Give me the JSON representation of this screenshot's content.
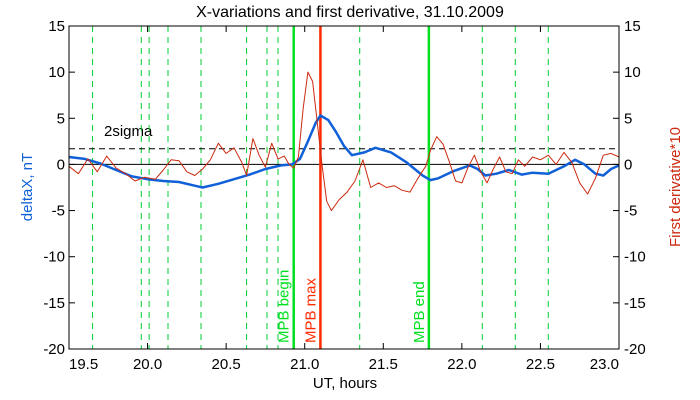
{
  "chart_data": {
    "type": "line",
    "title": "X-variations and first derivative, 31.10.2009",
    "xlabel": "UT, hours",
    "ylabel_left": "deltaX, nT",
    "ylabel_right": "First derivative*10",
    "xlim": [
      19.5,
      23.0
    ],
    "ylim_left": [
      -20,
      15
    ],
    "ylim_right": [
      -20,
      15
    ],
    "x_ticks": [
      "19.5",
      "20.0",
      "20.5",
      "21.0",
      "21.5",
      "22.0",
      "22.5",
      "23.0"
    ],
    "y_ticks": [
      "15",
      "10",
      "5",
      "0",
      "-5",
      "-10",
      "-15",
      "-20"
    ],
    "colors": {
      "deltaX": "#1060d8",
      "derivative": "#cc2a10",
      "mpb": "#00e020",
      "mpb_max": "#ff2a00",
      "guides": "#00cc33",
      "axis": "#000000"
    },
    "sigma_label": "2sigma",
    "sigma_level": 1.7,
    "zero_level": 0,
    "guide_lines_x": [
      19.65,
      19.96,
      20.01,
      20.13,
      20.34,
      20.63,
      20.76,
      20.83,
      21.35,
      22.13,
      22.34,
      22.55
    ],
    "events": [
      {
        "label": "MPB begin",
        "x": 20.93,
        "color": "#00e020"
      },
      {
        "label": "MPB max",
        "x": 21.1,
        "color": "#ff2a00"
      },
      {
        "label": "MPB end",
        "x": 21.79,
        "color": "#00e020"
      }
    ],
    "series": [
      {
        "name": "deltaX, nT",
        "color": "#1060d8",
        "points": [
          [
            19.5,
            0.8
          ],
          [
            19.6,
            0.6
          ],
          [
            19.7,
            0.1
          ],
          [
            19.8,
            -0.6
          ],
          [
            19.9,
            -1.3
          ],
          [
            20.0,
            -1.6
          ],
          [
            20.1,
            -1.8
          ],
          [
            20.2,
            -1.9
          ],
          [
            20.3,
            -2.3
          ],
          [
            20.35,
            -2.5
          ],
          [
            20.45,
            -2.1
          ],
          [
            20.55,
            -1.6
          ],
          [
            20.65,
            -1.1
          ],
          [
            20.75,
            -0.5
          ],
          [
            20.85,
            -0.1
          ],
          [
            20.92,
            0.0
          ],
          [
            20.97,
            0.6
          ],
          [
            21.02,
            2.5
          ],
          [
            21.07,
            4.5
          ],
          [
            21.1,
            5.3
          ],
          [
            21.15,
            4.8
          ],
          [
            21.2,
            3.5
          ],
          [
            21.25,
            2.0
          ],
          [
            21.3,
            1.0
          ],
          [
            21.38,
            1.3
          ],
          [
            21.45,
            1.8
          ],
          [
            21.55,
            1.3
          ],
          [
            21.65,
            0.2
          ],
          [
            21.75,
            -1.2
          ],
          [
            21.8,
            -1.7
          ],
          [
            21.85,
            -1.5
          ],
          [
            21.95,
            -0.7
          ],
          [
            22.05,
            -0.1
          ],
          [
            22.1,
            -0.5
          ],
          [
            22.15,
            -1.2
          ],
          [
            22.22,
            -1.0
          ],
          [
            22.3,
            -0.6
          ],
          [
            22.38,
            -1.1
          ],
          [
            22.45,
            -0.9
          ],
          [
            22.55,
            -1.0
          ],
          [
            22.65,
            -0.2
          ],
          [
            22.72,
            0.5
          ],
          [
            22.78,
            0.0
          ],
          [
            22.85,
            -1.0
          ],
          [
            22.9,
            -1.2
          ],
          [
            22.95,
            -0.5
          ],
          [
            23.0,
            -0.1
          ]
        ]
      },
      {
        "name": "First derivative*10",
        "color": "#cc2a10",
        "points": [
          [
            19.5,
            -0.2
          ],
          [
            19.56,
            -1.0
          ],
          [
            19.62,
            0.6
          ],
          [
            19.68,
            -0.8
          ],
          [
            19.74,
            0.9
          ],
          [
            19.8,
            -0.4
          ],
          [
            19.86,
            -1.0
          ],
          [
            19.92,
            -1.8
          ],
          [
            19.98,
            -1.4
          ],
          [
            20.05,
            -1.6
          ],
          [
            20.1,
            -0.6
          ],
          [
            20.15,
            0.5
          ],
          [
            20.2,
            0.4
          ],
          [
            20.25,
            -0.8
          ],
          [
            20.3,
            -1.2
          ],
          [
            20.35,
            -0.5
          ],
          [
            20.4,
            0.5
          ],
          [
            20.45,
            2.3
          ],
          [
            20.5,
            1.2
          ],
          [
            20.55,
            1.8
          ],
          [
            20.6,
            0.2
          ],
          [
            20.63,
            -1.2
          ],
          [
            20.67,
            2.8
          ],
          [
            20.71,
            1.0
          ],
          [
            20.75,
            -0.3
          ],
          [
            20.79,
            2.3
          ],
          [
            20.83,
            0.6
          ],
          [
            20.87,
            0.9
          ],
          [
            20.9,
            0.0
          ],
          [
            20.93,
            -0.4
          ],
          [
            20.96,
            0.8
          ],
          [
            20.99,
            6.0
          ],
          [
            21.02,
            10.0
          ],
          [
            21.05,
            9.0
          ],
          [
            21.08,
            4.5
          ],
          [
            21.11,
            0.0
          ],
          [
            21.14,
            -4.0
          ],
          [
            21.17,
            -5.0
          ],
          [
            21.22,
            -3.8
          ],
          [
            21.27,
            -3.0
          ],
          [
            21.32,
            -1.8
          ],
          [
            21.37,
            0.5
          ],
          [
            21.42,
            -2.5
          ],
          [
            21.47,
            -2.0
          ],
          [
            21.52,
            -2.5
          ],
          [
            21.57,
            -2.3
          ],
          [
            21.62,
            -2.8
          ],
          [
            21.67,
            -3.0
          ],
          [
            21.72,
            -1.5
          ],
          [
            21.77,
            -0.2
          ],
          [
            21.8,
            1.5
          ],
          [
            21.84,
            3.0
          ],
          [
            21.88,
            2.2
          ],
          [
            21.92,
            0.3
          ],
          [
            21.96,
            -1.8
          ],
          [
            22.0,
            -2.0
          ],
          [
            22.04,
            -0.3
          ],
          [
            22.08,
            1.0
          ],
          [
            22.12,
            -0.8
          ],
          [
            22.16,
            -2.0
          ],
          [
            22.2,
            -0.5
          ],
          [
            22.24,
            0.8
          ],
          [
            22.28,
            -0.8
          ],
          [
            22.32,
            -1.0
          ],
          [
            22.36,
            0.5
          ],
          [
            22.4,
            -0.2
          ],
          [
            22.45,
            0.8
          ],
          [
            22.5,
            0.5
          ],
          [
            22.55,
            1.0
          ],
          [
            22.6,
            0.0
          ],
          [
            22.65,
            1.3
          ],
          [
            22.7,
            0.2
          ],
          [
            22.75,
            -2.0
          ],
          [
            22.8,
            -3.2
          ],
          [
            22.85,
            -1.5
          ],
          [
            22.9,
            1.0
          ],
          [
            22.95,
            1.2
          ],
          [
            23.0,
            0.8
          ]
        ]
      }
    ],
    "grid": false,
    "legend": "none"
  }
}
